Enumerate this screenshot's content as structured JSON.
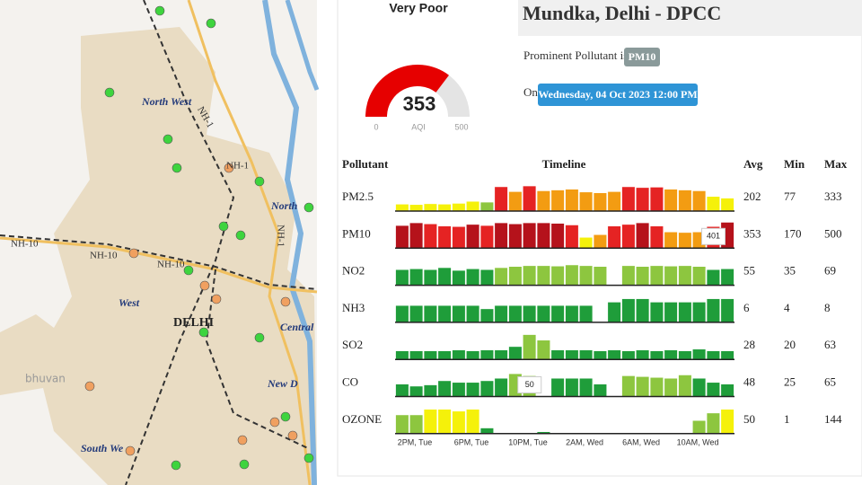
{
  "map": {
    "labels": [
      "North West",
      "NH-1",
      "NH-1",
      "North",
      "NH-1",
      "NH-10",
      "NH-10",
      "NH-10",
      "West",
      "DELHI",
      "Central",
      "New D",
      "South We",
      "bhuvan"
    ]
  },
  "gauge": {
    "category": "Very Poor",
    "value": 353,
    "min": 0,
    "max": 500,
    "unit": "AQI",
    "color": "#e60000",
    "track": "#e4e4e4"
  },
  "header": {
    "station": "Mundka, Delhi - DPCC",
    "prominent_text": "Prominent Pollutant is",
    "prominent": "PM10",
    "on_text": "On",
    "date": "Wednesday, 04 Oct 2023 12:00 PM"
  },
  "table": {
    "columns": [
      "Pollutant",
      "Timeline",
      "Avg",
      "Min",
      "Max"
    ],
    "ticks": [
      "2PM, Tue",
      "6PM, Tue",
      "10PM, Tue",
      "2AM, Wed",
      "6AM, Wed",
      "10AM, Wed"
    ],
    "rows": [
      {
        "name": "PM2.5",
        "avg": 202,
        "min": 77,
        "max": 333,
        "values": [
          85,
          80,
          90,
          85,
          95,
          120,
          110,
          300,
          240,
          310,
          250,
          260,
          270,
          235,
          225,
          240,
          300,
          290,
          295,
          270,
          260,
          250,
          180,
          160
        ],
        "colors": [
          "#f5f10a",
          "#f5f10a",
          "#f5f10a",
          "#f5f10a",
          "#f5f10a",
          "#f5f10a",
          "#8dc63f",
          "#e52323",
          "#f39c12",
          "#e52323",
          "#f39c12",
          "#f39c12",
          "#f39c12",
          "#f39c12",
          "#f39c12",
          "#f39c12",
          "#e52323",
          "#e52323",
          "#e52323",
          "#f39c12",
          "#f39c12",
          "#f39c12",
          "#f5f10a",
          "#f5f10a"
        ]
      },
      {
        "name": "PM10",
        "avg": 353,
        "min": 170,
        "max": 500,
        "values": [
          420,
          470,
          450,
          410,
          400,
          440,
          420,
          470,
          450,
          470,
          470,
          460,
          430,
          200,
          250,
          410,
          440,
          470,
          410,
          300,
          290,
          300,
          401,
          480
        ],
        "colors": [
          "#b5121b",
          "#b5121b",
          "#e52323",
          "#e52323",
          "#e52323",
          "#b5121b",
          "#e52323",
          "#b5121b",
          "#b5121b",
          "#b5121b",
          "#b5121b",
          "#b5121b",
          "#e52323",
          "#f5f10a",
          "#f39c12",
          "#e52323",
          "#e52323",
          "#b5121b",
          "#e52323",
          "#f39c12",
          "#f39c12",
          "#f39c12",
          "#e52323",
          "#b5121b"
        ],
        "highlight": 22
      },
      {
        "name": "NO2",
        "avg": 55,
        "min": 35,
        "max": 69,
        "values": [
          40,
          42,
          40,
          45,
          38,
          42,
          40,
          45,
          48,
          50,
          50,
          49,
          52,
          50,
          48,
          null,
          50,
          48,
          50,
          49,
          50,
          48,
          40,
          42
        ],
        "colors": [
          "#1f9d3a",
          "#1f9d3a",
          "#1f9d3a",
          "#1f9d3a",
          "#1f9d3a",
          "#1f9d3a",
          "#1f9d3a",
          "#8dc63f",
          "#8dc63f",
          "#8dc63f",
          "#8dc63f",
          "#8dc63f",
          "#8dc63f",
          "#8dc63f",
          "#8dc63f",
          "#8dc63f",
          "#8dc63f",
          "#8dc63f",
          "#8dc63f",
          "#8dc63f",
          "#8dc63f",
          "#8dc63f",
          "#1f9d3a",
          "#1f9d3a"
        ]
      },
      {
        "name": "NH3",
        "avg": 6,
        "min": 4,
        "max": 8,
        "values": [
          5,
          5,
          5,
          5,
          5,
          5,
          4,
          5,
          5,
          5,
          5,
          5,
          5,
          5,
          null,
          6,
          7,
          7,
          6,
          6,
          6,
          6,
          7,
          7
        ],
        "colors": [
          "#1f9d3a",
          "#1f9d3a",
          "#1f9d3a",
          "#1f9d3a",
          "#1f9d3a",
          "#1f9d3a",
          "#1f9d3a",
          "#1f9d3a",
          "#1f9d3a",
          "#1f9d3a",
          "#1f9d3a",
          "#1f9d3a",
          "#1f9d3a",
          "#1f9d3a",
          "#1f9d3a",
          "#1f9d3a",
          "#1f9d3a",
          "#1f9d3a",
          "#1f9d3a",
          "#1f9d3a",
          "#1f9d3a",
          "#1f9d3a",
          "#1f9d3a",
          "#1f9d3a"
        ]
      },
      {
        "name": "SO2",
        "avg": 28,
        "min": 20,
        "max": 63,
        "values": [
          20,
          20,
          20,
          20,
          22,
          20,
          22,
          22,
          30,
          58,
          45,
          22,
          22,
          22,
          20,
          22,
          20,
          22,
          20,
          22,
          20,
          24,
          20,
          20
        ],
        "colors": [
          "#1f9d3a",
          "#1f9d3a",
          "#1f9d3a",
          "#1f9d3a",
          "#1f9d3a",
          "#1f9d3a",
          "#1f9d3a",
          "#1f9d3a",
          "#1f9d3a",
          "#8dc63f",
          "#8dc63f",
          "#1f9d3a",
          "#1f9d3a",
          "#1f9d3a",
          "#1f9d3a",
          "#1f9d3a",
          "#1f9d3a",
          "#1f9d3a",
          "#1f9d3a",
          "#1f9d3a",
          "#1f9d3a",
          "#1f9d3a",
          "#1f9d3a",
          "#1f9d3a"
        ]
      },
      {
        "name": "CO",
        "avg": 48,
        "min": 25,
        "max": 65,
        "values": [
          30,
          25,
          28,
          38,
          34,
          34,
          38,
          44,
          55,
          50,
          null,
          44,
          44,
          44,
          30,
          null,
          50,
          48,
          46,
          44,
          52,
          44,
          34,
          30
        ],
        "colors": [
          "#1f9d3a",
          "#1f9d3a",
          "#1f9d3a",
          "#1f9d3a",
          "#1f9d3a",
          "#1f9d3a",
          "#1f9d3a",
          "#1f9d3a",
          "#8dc63f",
          "#8dc63f",
          "#1f9d3a",
          "#1f9d3a",
          "#1f9d3a",
          "#1f9d3a",
          "#1f9d3a",
          "#1f9d3a",
          "#8dc63f",
          "#8dc63f",
          "#8dc63f",
          "#8dc63f",
          "#8dc63f",
          "#1f9d3a",
          "#1f9d3a",
          "#1f9d3a"
        ],
        "highlight": 9
      },
      {
        "name": "OZONE",
        "avg": 50,
        "min": 1,
        "max": 144,
        "values": [
          100,
          100,
          130,
          130,
          120,
          130,
          30,
          null,
          null,
          null,
          10,
          null,
          null,
          null,
          null,
          null,
          null,
          null,
          null,
          null,
          null,
          70,
          110,
          130
        ],
        "colors": [
          "#8dc63f",
          "#8dc63f",
          "#f5f10a",
          "#f5f10a",
          "#f5f10a",
          "#f5f10a",
          "#1f9d3a",
          "#1f9d3a",
          "#1f9d3a",
          "#1f9d3a",
          "#1f9d3a",
          "#1f9d3a",
          "#1f9d3a",
          "#1f9d3a",
          "#1f9d3a",
          "#1f9d3a",
          "#1f9d3a",
          "#1f9d3a",
          "#1f9d3a",
          "#1f9d3a",
          "#1f9d3a",
          "#8dc63f",
          "#8dc63f",
          "#f5f10a"
        ]
      }
    ]
  }
}
